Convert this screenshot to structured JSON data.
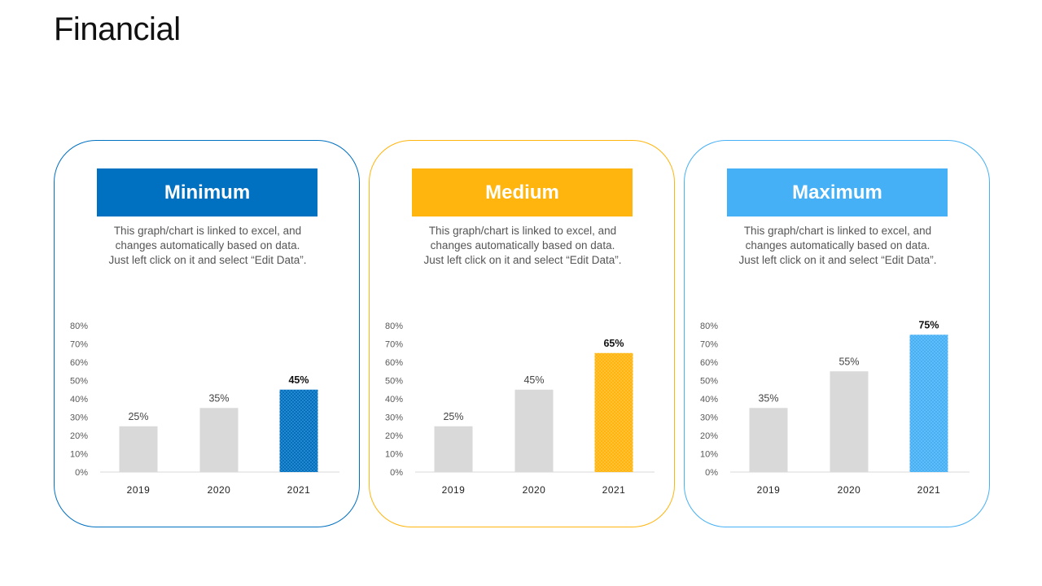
{
  "page": {
    "title": "Financial"
  },
  "colors": {
    "minimum": "#0070c0",
    "medium": "#ffb50d",
    "maximum": "#45b0f5",
    "base_bar": "#d9d9d9"
  },
  "cards": [
    {
      "key": "minimum",
      "title": "Minimum",
      "description": "This graph/chart is linked to excel, and changes automatically based on data. Just left click on it and select “Edit Data”."
    },
    {
      "key": "medium",
      "title": "Medium",
      "description": "This graph/chart is linked to excel, and changes automatically based on data. Just left click on it and select “Edit Data”."
    },
    {
      "key": "maximum",
      "title": "Maximum",
      "description": "This graph/chart is linked to excel, and changes automatically based on data. Just left click on it and select “Edit Data”."
    }
  ],
  "chart_data": [
    {
      "type": "bar",
      "title": "Minimum",
      "categories": [
        "2019",
        "2020",
        "2021"
      ],
      "values": [
        25,
        35,
        45
      ],
      "value_labels": [
        "25%",
        "35%",
        "45%"
      ],
      "highlight_index": 2,
      "ylim": [
        0,
        80
      ],
      "yticks": [
        "0%",
        "10%",
        "20%",
        "30%",
        "40%",
        "50%",
        "60%",
        "70%",
        "80%"
      ],
      "xlabel": "",
      "ylabel": "",
      "grid": false
    },
    {
      "type": "bar",
      "title": "Medium",
      "categories": [
        "2019",
        "2020",
        "2021"
      ],
      "values": [
        25,
        45,
        65
      ],
      "value_labels": [
        "25%",
        "45%",
        "65%"
      ],
      "highlight_index": 2,
      "ylim": [
        0,
        80
      ],
      "yticks": [
        "0%",
        "10%",
        "20%",
        "30%",
        "40%",
        "50%",
        "60%",
        "70%",
        "80%"
      ],
      "xlabel": "",
      "ylabel": "",
      "grid": false
    },
    {
      "type": "bar",
      "title": "Maximum",
      "categories": [
        "2019",
        "2020",
        "2021"
      ],
      "values": [
        35,
        55,
        75
      ],
      "value_labels": [
        "35%",
        "55%",
        "75%"
      ],
      "highlight_index": 2,
      "ylim": [
        0,
        80
      ],
      "yticks": [
        "0%",
        "10%",
        "20%",
        "30%",
        "40%",
        "50%",
        "60%",
        "70%",
        "80%"
      ],
      "xlabel": "",
      "ylabel": "",
      "grid": false
    }
  ]
}
